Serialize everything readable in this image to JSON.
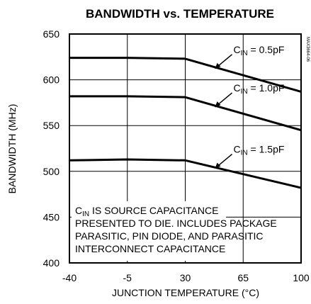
{
  "chart_data": {
    "type": "line",
    "title": "BANDWIDTH vs. TEMPERATURE",
    "xlabel": "JUNCTION TEMPERATURE (°C)",
    "ylabel": "BANDWIDTH (MHz)",
    "xlim": [
      -40,
      100
    ],
    "ylim": [
      400,
      650
    ],
    "x_ticks": [
      "-40",
      "-5",
      "30",
      "65",
      "100"
    ],
    "y_ticks": [
      "400",
      "450",
      "500",
      "550",
      "600",
      "650"
    ],
    "grid": true,
    "series": [
      {
        "label_main": "C",
        "label_sub": "IN",
        "label_rest": " = 0.5pF",
        "x": [
          -40,
          -5,
          30,
          65,
          100
        ],
        "y": [
          624,
          624,
          623,
          605,
          587
        ]
      },
      {
        "label_main": "C",
        "label_sub": "IN",
        "label_rest": " = 1.0pF",
        "x": [
          -40,
          -5,
          30,
          65,
          100
        ],
        "y": [
          582,
          582,
          581,
          563,
          545
        ]
      },
      {
        "label_main": "C",
        "label_sub": "IN",
        "label_rest": " = 1.5pF",
        "x": [
          -40,
          -5,
          30,
          65,
          100
        ],
        "y": [
          512,
          513,
          512,
          497,
          482
        ]
      }
    ],
    "annotation": {
      "line1_main": "C",
      "line1_sub": "IN",
      "line1_rest": " IS SOURCE CAPACITANCE",
      "lines": [
        "PRESENTED TO DIE. INCLUDES PACKAGE",
        "PARASITIC, PIN DIODE, AND PARASITIC",
        "INTERCONNECT CAPACITANCE"
      ]
    },
    "side_code": "MAX3664-06"
  }
}
